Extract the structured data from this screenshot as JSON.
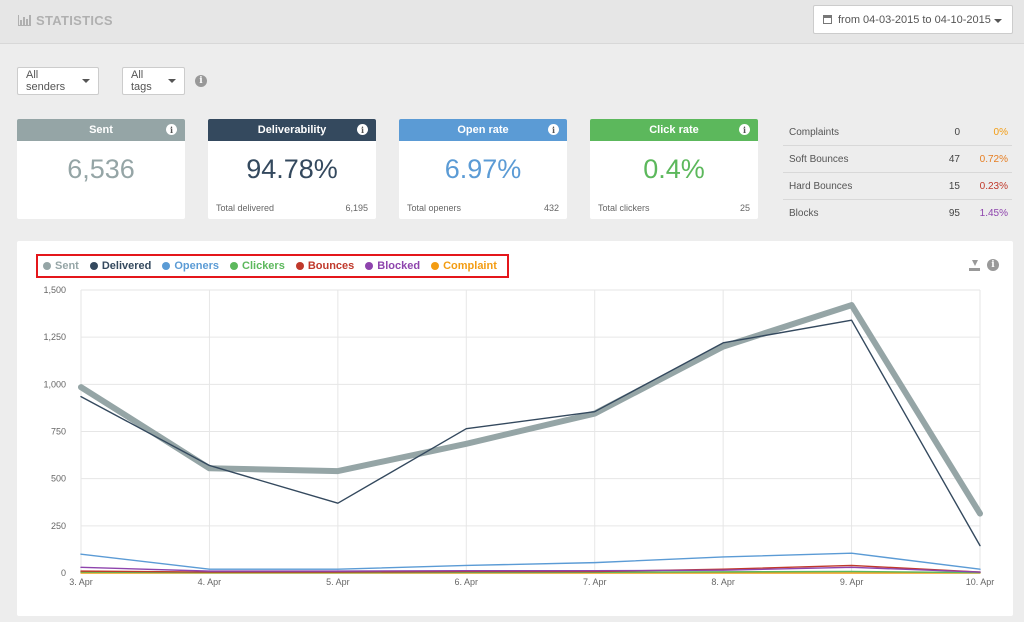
{
  "header": {
    "title": "STATISTICS",
    "date_range": "from 04-03-2015 to 04-10-2015"
  },
  "filters": {
    "senders": "All senders",
    "tags": "All tags"
  },
  "cards": [
    {
      "title": "Sent",
      "value": "6,536",
      "color": "#95a5a6"
    },
    {
      "title": "Deliverability",
      "value": "94.78%",
      "foot_label": "Total delivered",
      "foot_value": "6,195",
      "color": "#34495e"
    },
    {
      "title": "Open rate",
      "value": "6.97%",
      "foot_label": "Total openers",
      "foot_value": "432",
      "color": "#5b9bd5"
    },
    {
      "title": "Click rate",
      "value": "0.4%",
      "foot_label": "Total clickers",
      "foot_value": "25",
      "color": "#5cb85c"
    }
  ],
  "side_stats": [
    {
      "label": "Complaints",
      "count": "0",
      "pct": "0%",
      "color": "#f39c12"
    },
    {
      "label": "Soft Bounces",
      "count": "47",
      "pct": "0.72%",
      "color": "#e67e22"
    },
    {
      "label": "Hard Bounces",
      "count": "15",
      "pct": "0.23%",
      "color": "#c0392b"
    },
    {
      "label": "Blocks",
      "count": "95",
      "pct": "1.45%",
      "color": "#8e44ad"
    }
  ],
  "chart_data": {
    "type": "line",
    "categories": [
      "3. Apr",
      "4. Apr",
      "5. Apr",
      "6. Apr",
      "7. Apr",
      "8. Apr",
      "9. Apr",
      "10. Apr"
    ],
    "ylim": [
      0,
      1500
    ],
    "yticks": [
      "0",
      "250",
      "500",
      "750",
      "1,000",
      "1,250",
      "1,500"
    ],
    "grid": true,
    "series": [
      {
        "name": "Sent",
        "color": "#95a5a6",
        "values": [
          985,
          555,
          540,
          685,
          845,
          1200,
          1420,
          315
        ]
      },
      {
        "name": "Delivered",
        "color": "#34495e",
        "values": [
          935,
          570,
          370,
          765,
          855,
          1220,
          1340,
          145
        ]
      },
      {
        "name": "Openers",
        "color": "#5b9bd5",
        "values": [
          100,
          20,
          20,
          40,
          55,
          85,
          105,
          20
        ]
      },
      {
        "name": "Clickers",
        "color": "#5cb85c",
        "values": [
          5,
          2,
          2,
          3,
          4,
          6,
          8,
          2
        ]
      },
      {
        "name": "Bounces",
        "color": "#c0392b",
        "values": [
          10,
          5,
          5,
          8,
          8,
          20,
          40,
          5
        ]
      },
      {
        "name": "Blocked",
        "color": "#8e44ad",
        "values": [
          30,
          10,
          10,
          12,
          12,
          15,
          30,
          5
        ]
      },
      {
        "name": "Complaint",
        "color": "#f39c12",
        "values": [
          0,
          0,
          0,
          0,
          0,
          0,
          0,
          0
        ]
      }
    ]
  }
}
